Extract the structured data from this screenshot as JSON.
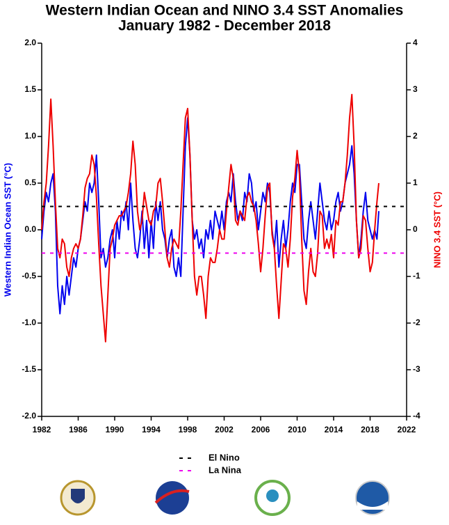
{
  "chart_data": {
    "type": "line",
    "title": "Western Indian Ocean and NINO 3.4 SST Anomalies",
    "subtitle": "January 1982 - December 2018",
    "ylabel": "Western Indian Ocean SST (°C)",
    "y2label": "NINO 3.4 SST (°C)",
    "xlim": [
      1982,
      2022
    ],
    "xticks": [
      1982,
      1986,
      1990,
      1994,
      1998,
      2002,
      2006,
      2010,
      2014,
      2018,
      2022
    ],
    "ylim": [
      -2,
      2
    ],
    "yticks": [
      {
        "value": -2,
        "label": "-2.0"
      },
      -1.5,
      {
        "value": -1,
        "label": "-1.0"
      },
      -0.5,
      {
        "value": 0,
        "label": "0.0"
      },
      0.5,
      {
        "value": 1,
        "label": "1.0"
      },
      1.5,
      {
        "value": 2,
        "label": "2.0"
      }
    ],
    "y2lim": [
      -4,
      4
    ],
    "y2ticks": [
      -4,
      -3,
      -2,
      -1,
      0,
      1,
      2,
      3,
      4
    ],
    "reference_lines": [
      {
        "name": "El Nino",
        "value": 0.5,
        "axis": "y2",
        "color": "#000000"
      },
      {
        "name": "La Nina",
        "value": -0.5,
        "axis": "y2",
        "color": "#ee00ee"
      }
    ],
    "x": [
      1982,
      1982.25,
      1982.5,
      1982.75,
      1983,
      1983.25,
      1983.5,
      1983.75,
      1984,
      1984.25,
      1984.5,
      1984.75,
      1985,
      1985.25,
      1985.5,
      1985.75,
      1986,
      1986.25,
      1986.5,
      1986.75,
      1987,
      1987.25,
      1987.5,
      1987.75,
      1988,
      1988.25,
      1988.5,
      1988.75,
      1989,
      1989.25,
      1989.5,
      1989.75,
      1990,
      1990.25,
      1990.5,
      1990.75,
      1991,
      1991.25,
      1991.5,
      1991.75,
      1992,
      1992.25,
      1992.5,
      1992.75,
      1993,
      1993.25,
      1993.5,
      1993.75,
      1994,
      1994.25,
      1994.5,
      1994.75,
      1995,
      1995.25,
      1995.5,
      1995.75,
      1996,
      1996.25,
      1996.5,
      1996.75,
      1997,
      1997.25,
      1997.5,
      1997.75,
      1998,
      1998.25,
      1998.5,
      1998.75,
      1999,
      1999.25,
      1999.5,
      1999.75,
      2000,
      2000.25,
      2000.5,
      2000.75,
      2001,
      2001.25,
      2001.5,
      2001.75,
      2002,
      2002.25,
      2002.5,
      2002.75,
      2003,
      2003.25,
      2003.5,
      2003.75,
      2004,
      2004.25,
      2004.5,
      2004.75,
      2005,
      2005.25,
      2005.5,
      2005.75,
      2006,
      2006.25,
      2006.5,
      2006.75,
      2007,
      2007.25,
      2007.5,
      2007.75,
      2008,
      2008.25,
      2008.5,
      2008.75,
      2009,
      2009.25,
      2009.5,
      2009.75,
      2010,
      2010.25,
      2010.5,
      2010.75,
      2011,
      2011.25,
      2011.5,
      2011.75,
      2012,
      2012.25,
      2012.5,
      2012.75,
      2013,
      2013.25,
      2013.5,
      2013.75,
      2014,
      2014.25,
      2014.5,
      2014.75,
      2015,
      2015.25,
      2015.5,
      2015.75,
      2016,
      2016.25,
      2016.5,
      2016.75,
      2017,
      2017.25,
      2017.5,
      2017.75,
      2018,
      2018.25,
      2018.5,
      2018.75,
      2018.95
    ],
    "series": [
      {
        "name": "Western Indian Ocean SST",
        "color": "#0000ee",
        "axis": "y",
        "values": [
          -0.1,
          0.2,
          0.4,
          0.3,
          0.5,
          0.6,
          0.2,
          -0.6,
          -0.9,
          -0.6,
          -0.8,
          -0.5,
          -0.7,
          -0.5,
          -0.3,
          -0.4,
          -0.2,
          -0.1,
          0.1,
          0.3,
          0.2,
          0.5,
          0.4,
          0.5,
          0.8,
          0.3,
          -0.3,
          -0.2,
          -0.4,
          -0.3,
          -0.1,
          0.0,
          -0.3,
          0.1,
          -0.1,
          0.2,
          0.1,
          0.3,
          0.0,
          0.5,
          0.1,
          -0.2,
          -0.3,
          -0.1,
          0.2,
          -0.2,
          0.1,
          -0.3,
          0.1,
          -0.2,
          0.3,
          0.1,
          0.3,
          0.0,
          -0.1,
          -0.3,
          -0.1,
          0.0,
          -0.4,
          -0.5,
          -0.3,
          -0.5,
          0.2,
          0.9,
          1.2,
          0.8,
          0.1,
          -0.1,
          0.0,
          -0.2,
          -0.1,
          -0.3,
          0.0,
          -0.1,
          0.1,
          -0.1,
          0.2,
          0.1,
          0.0,
          0.2,
          0.0,
          0.3,
          0.4,
          0.3,
          0.6,
          0.3,
          0.1,
          0.2,
          0.1,
          0.4,
          0.3,
          0.6,
          0.5,
          0.2,
          0.3,
          0.0,
          0.2,
          0.4,
          0.3,
          0.5,
          0.4,
          0.0,
          -0.2,
          0.1,
          -0.4,
          -0.1,
          0.1,
          -0.2,
          0.0,
          0.3,
          0.5,
          0.4,
          0.7,
          0.7,
          0.3,
          -0.1,
          -0.2,
          0.1,
          0.3,
          0.1,
          -0.1,
          0.2,
          0.5,
          0.3,
          0.1,
          0.0,
          0.2,
          0.0,
          0.1,
          0.3,
          0.4,
          0.2,
          0.3,
          0.5,
          0.6,
          0.7,
          0.9,
          0.6,
          0.1,
          -0.3,
          -0.1,
          0.2,
          0.4,
          0.1,
          0.0,
          -0.1,
          0.0,
          -0.1,
          0.2
        ]
      },
      {
        "name": "NINO 3.4 SST",
        "color": "#ee0000",
        "axis": "y2",
        "values": [
          0.0,
          0.6,
          1.0,
          1.8,
          2.8,
          1.8,
          0.6,
          -0.4,
          -0.6,
          -0.2,
          -0.3,
          -0.8,
          -1.0,
          -0.6,
          -0.4,
          -0.3,
          -0.4,
          -0.2,
          0.3,
          0.9,
          1.1,
          1.2,
          1.6,
          1.4,
          0.7,
          -0.3,
          -1.2,
          -1.8,
          -2.4,
          -1.4,
          -0.4,
          -0.2,
          0.1,
          0.2,
          0.3,
          0.3,
          0.4,
          0.5,
          0.8,
          1.2,
          1.9,
          1.4,
          0.4,
          0.0,
          0.2,
          0.8,
          0.5,
          0.2,
          0.1,
          0.4,
          0.5,
          1.0,
          1.1,
          0.6,
          0.0,
          -0.6,
          -0.8,
          -0.4,
          -0.2,
          -0.3,
          -0.4,
          0.4,
          1.4,
          2.4,
          2.6,
          1.6,
          0.2,
          -1.0,
          -1.4,
          -1.0,
          -1.0,
          -1.4,
          -1.9,
          -1.0,
          -0.6,
          -0.7,
          -0.7,
          -0.4,
          0.0,
          -0.2,
          -0.2,
          0.4,
          0.9,
          1.4,
          1.1,
          0.2,
          0.1,
          0.4,
          0.3,
          0.2,
          0.7,
          0.8,
          0.6,
          0.5,
          0.2,
          -0.3,
          -0.9,
          -0.4,
          0.3,
          0.9,
          1.0,
          -0.1,
          -0.4,
          -1.2,
          -1.9,
          -1.1,
          -0.3,
          -0.4,
          -0.8,
          -0.2,
          0.7,
          1.1,
          1.7,
          1.2,
          -0.2,
          -1.3,
          -1.6,
          -0.9,
          -0.4,
          -0.9,
          -1.0,
          -0.5,
          0.4,
          0.3,
          -0.4,
          -0.2,
          -0.4,
          -0.1,
          -0.6,
          0.2,
          0.1,
          0.6,
          0.6,
          1.0,
          1.6,
          2.4,
          2.9,
          1.8,
          0.2,
          -0.6,
          -0.4,
          0.3,
          0.2,
          -0.4,
          -0.9,
          -0.7,
          0.0,
          0.6,
          1.0
        ]
      }
    ]
  }
}
